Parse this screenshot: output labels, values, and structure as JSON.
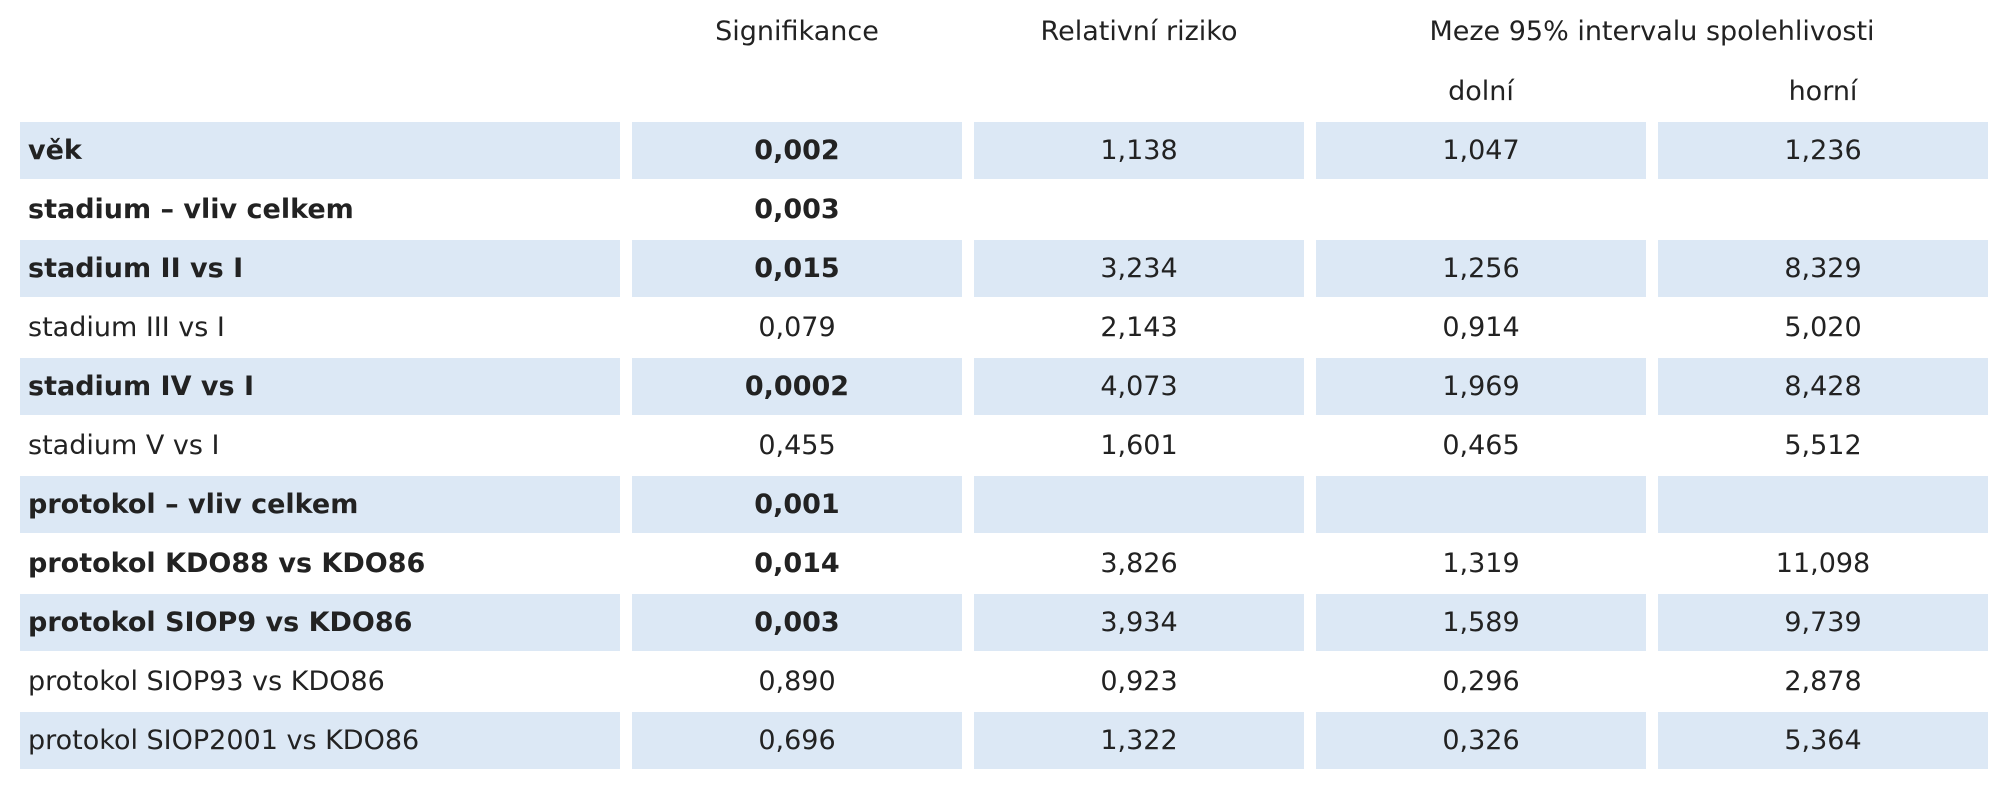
{
  "table": {
    "header": {
      "significance": "Signifikance",
      "relative_risk": "Relativní riziko",
      "interval": "Meze 95% intervalu spolehlivosti",
      "lower": "dolní",
      "upper": "horní"
    },
    "rows": [
      {
        "label": "věk",
        "significance": "0,002",
        "relative_risk": "1,138",
        "lower": "1,047",
        "upper": "1,236",
        "bold": true,
        "shaded": true
      },
      {
        "label": "stadium – vliv celkem",
        "significance": "0,003",
        "relative_risk": null,
        "lower": null,
        "upper": null,
        "bold": true,
        "shaded": false
      },
      {
        "label": "stadium II vs I",
        "significance": "0,015",
        "relative_risk": "3,234",
        "lower": "1,256",
        "upper": "8,329",
        "bold": true,
        "shaded": true
      },
      {
        "label": "stadium III vs I",
        "significance": "0,079",
        "relative_risk": "2,143",
        "lower": "0,914",
        "upper": "5,020",
        "bold": false,
        "shaded": false
      },
      {
        "label": "stadium IV vs I",
        "significance": "0,0002",
        "relative_risk": "4,073",
        "lower": "1,969",
        "upper": "8,428",
        "bold": true,
        "shaded": true
      },
      {
        "label": "stadium V vs I",
        "significance": "0,455",
        "relative_risk": "1,601",
        "lower": "0,465",
        "upper": "5,512",
        "bold": false,
        "shaded": false
      },
      {
        "label": "protokol – vliv celkem",
        "significance": "0,001",
        "relative_risk": null,
        "lower": null,
        "upper": null,
        "bold": true,
        "shaded": true
      },
      {
        "label": "protokol KDO88 vs KDO86",
        "significance": "0,014",
        "relative_risk": "3,826",
        "lower": "1,319",
        "upper": "11,098",
        "bold": true,
        "shaded": false
      },
      {
        "label": "protokol SIOP9 vs KDO86",
        "significance": "0,003",
        "relative_risk": "3,934",
        "lower": "1,589",
        "upper": "9,739",
        "bold": true,
        "shaded": true
      },
      {
        "label": "protokol SIOP93 vs KDO86",
        "significance": "0,890",
        "relative_risk": "0,923",
        "lower": "0,296",
        "upper": "2,878",
        "bold": false,
        "shaded": false
      },
      {
        "label": "protokol SIOP2001 vs KDO86",
        "significance": "0,696",
        "relative_risk": "1,322",
        "lower": "0,326",
        "upper": "5,364",
        "bold": false,
        "shaded": true
      }
    ]
  }
}
